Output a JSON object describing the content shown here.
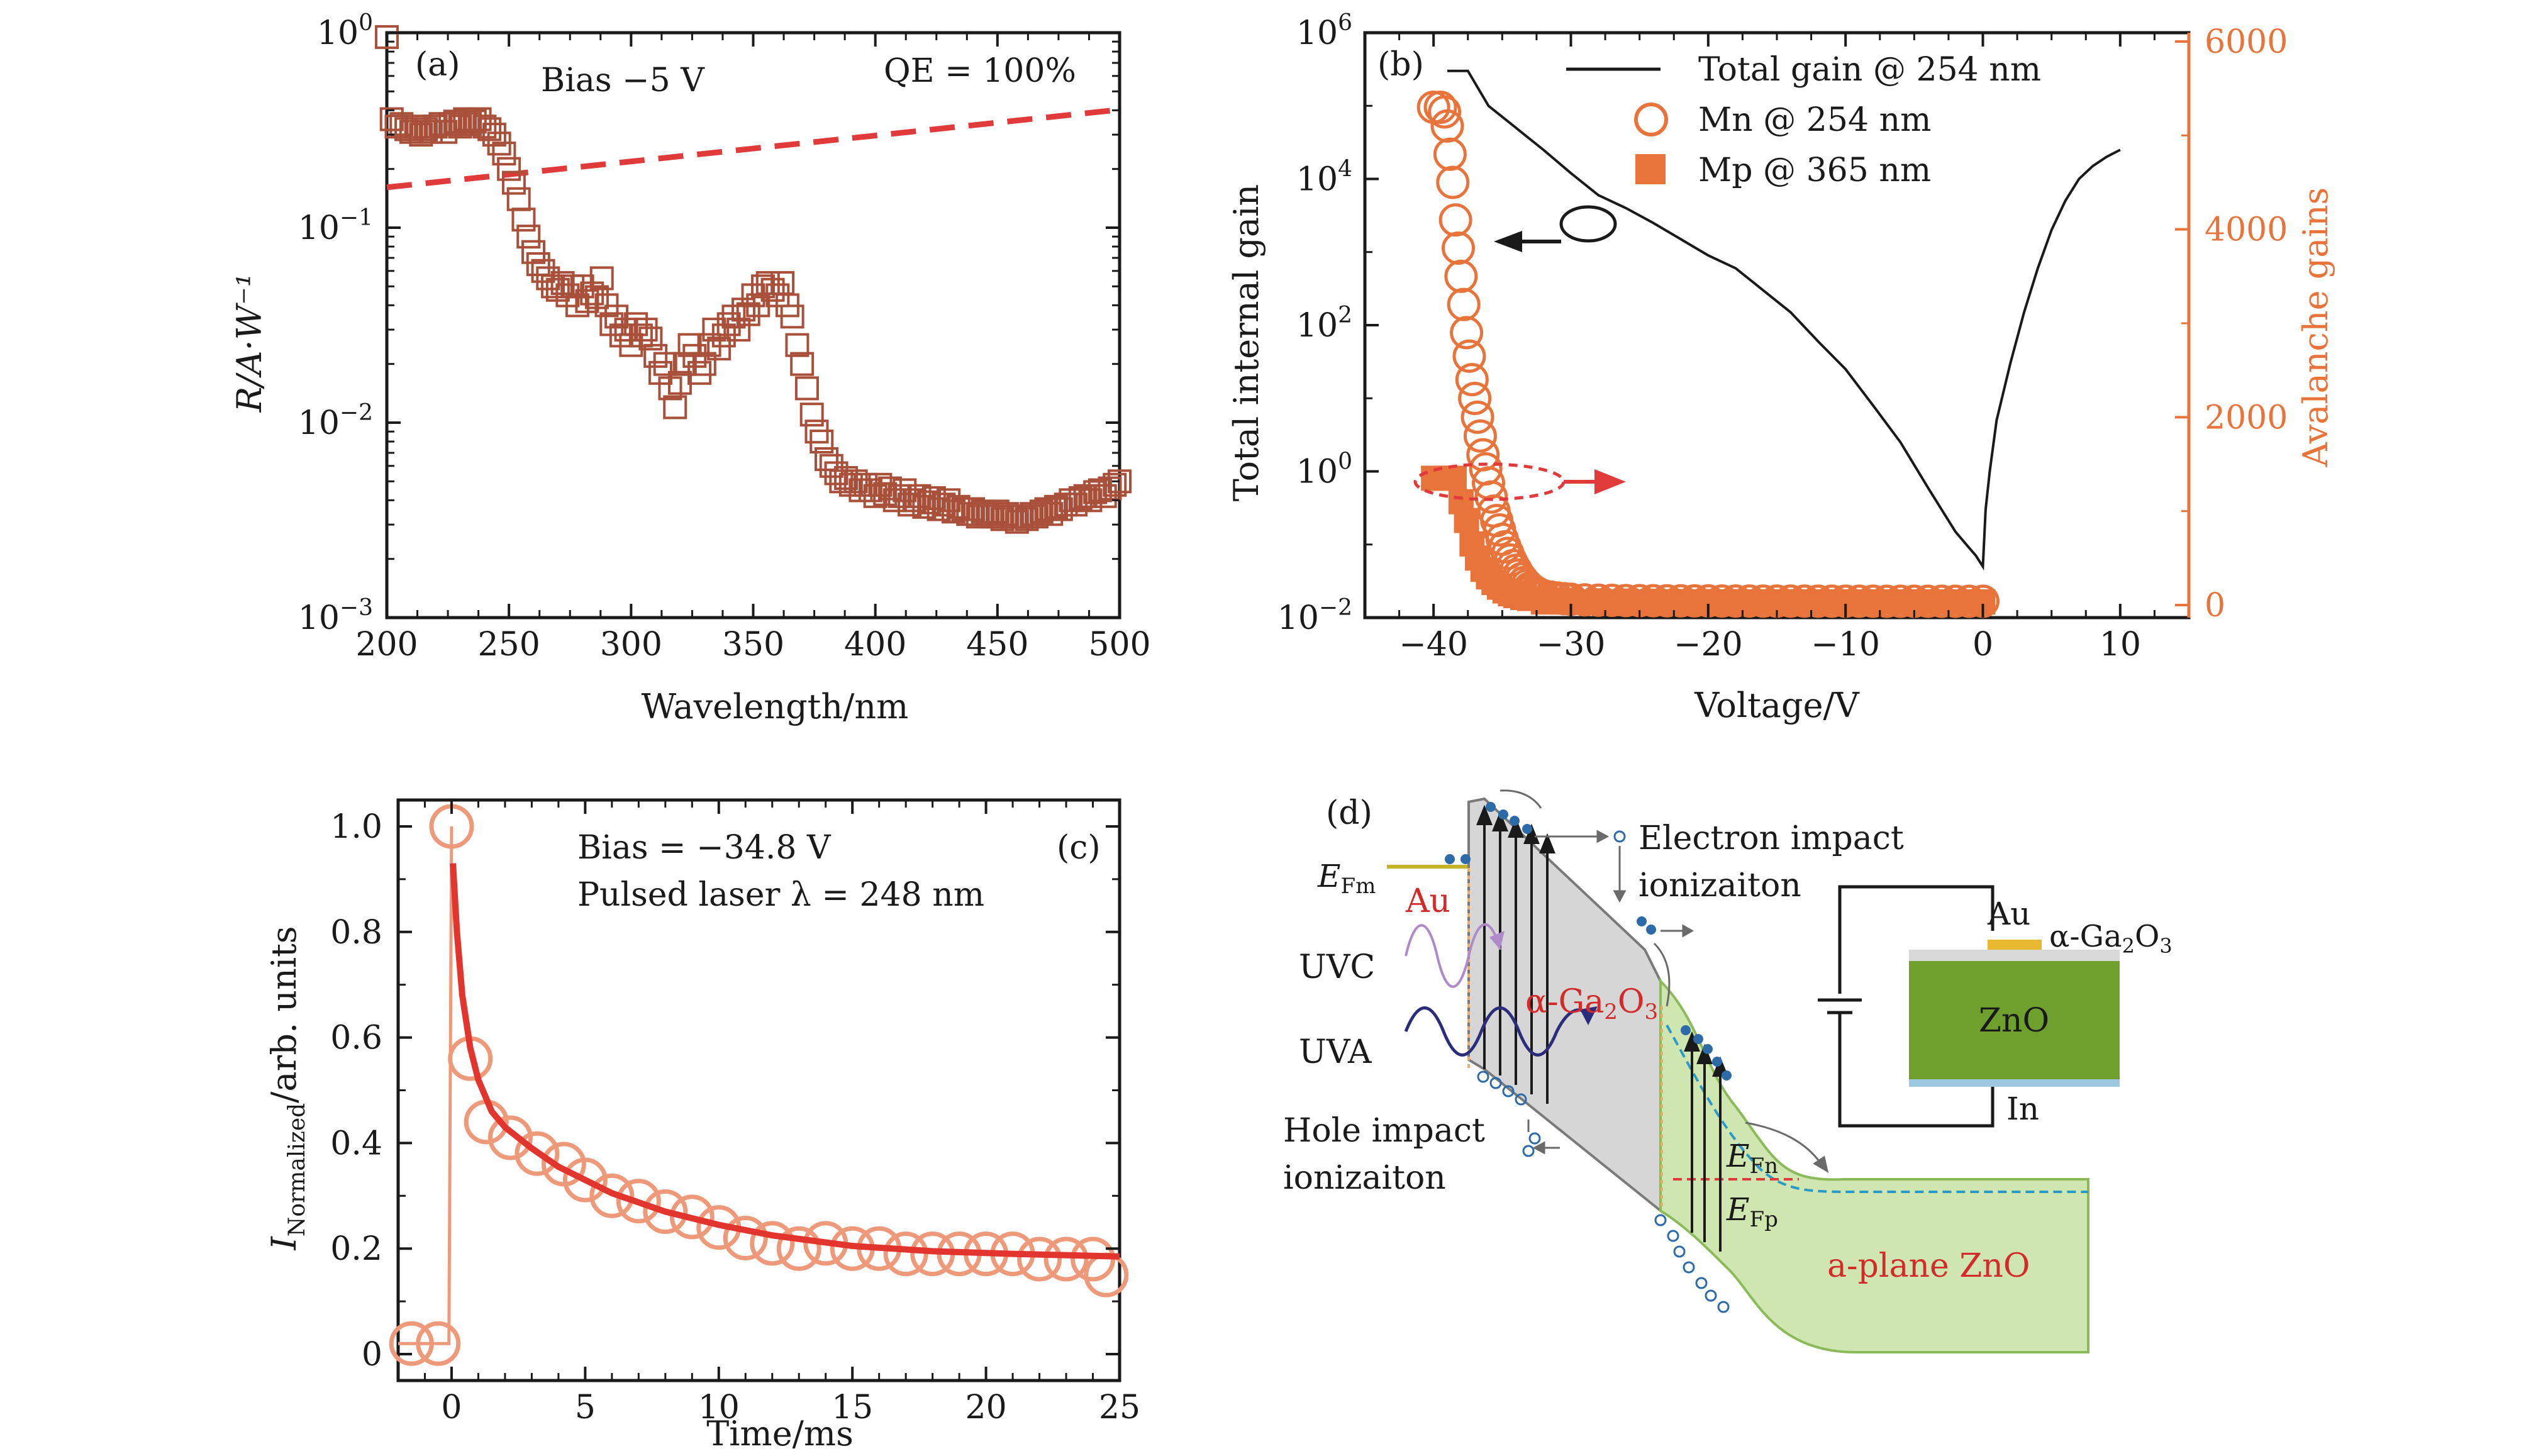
{
  "colors": {
    "axis": "#1a1a1a",
    "square_marker": "#a8503a",
    "qe_line": "#e03a3a",
    "orange": "#e8743b",
    "pulse_circle": "#ee9a7a",
    "fit_line": "#e2352e",
    "green": "#6a9a2c",
    "light_green": "#cfe6b0",
    "band_gray": "#d4d4d4",
    "electron": "#3a78b8",
    "red_label": "#d42a2a"
  },
  "panel_a": {
    "label": "(a)",
    "bias": "Bias −5 V",
    "qe": "QE = 100%",
    "ylabel": "R/A·W⁻¹",
    "xlabel": "Wavelength/nm",
    "xticks": [
      "200",
      "250",
      "300",
      "350",
      "400",
      "450",
      "500"
    ],
    "yticks": [
      {
        "base": "10",
        "exp": "0"
      },
      {
        "base": "10",
        "exp": "−1"
      },
      {
        "base": "10",
        "exp": "−2"
      },
      {
        "base": "10",
        "exp": "−3"
      }
    ]
  },
  "panel_b": {
    "label": "(b)",
    "ylabel_left": "Total internal gain",
    "ylabel_right": "Avalanche gains",
    "xlabel": "Voltage/V",
    "legend_total": "Total gain @ 254 nm",
    "legend_mn": "Mn @ 254 nm",
    "legend_mp": "Mp @ 365 nm",
    "xticks": [
      "−40",
      "−30",
      "−20",
      "−10",
      "0",
      "10"
    ],
    "yticks_left": [
      {
        "base": "10",
        "exp": "6"
      },
      {
        "base": "10",
        "exp": "4"
      },
      {
        "base": "10",
        "exp": "2"
      },
      {
        "base": "10",
        "exp": "0"
      },
      {
        "base": "10",
        "exp": "−2"
      }
    ],
    "yticks_right": [
      "6000",
      "4000",
      "2000",
      "0"
    ]
  },
  "panel_c": {
    "label": "(c)",
    "bias": "Bias = −34.8 V",
    "laser": "Pulsed laser λ = 248 nm",
    "ylabel_main": "I",
    "ylabel_sub": "Normalized",
    "ylabel_rest": "/arb. units",
    "xlabel": "Time/ms",
    "xticks": [
      "0",
      "5",
      "10",
      "15",
      "20",
      "25"
    ],
    "yticks": [
      "1.0",
      "0.8",
      "0.6",
      "0.4",
      "0.2",
      "0"
    ]
  },
  "panel_d": {
    "label": "(d)",
    "efm_main": "E",
    "efm_sub": "Fm",
    "au": "Au",
    "uvc": "UVC",
    "uva": "UVA",
    "ga2o3_main": "α-Ga",
    "ga2o3_sub1": "2",
    "ga2o3_mid": "O",
    "ga2o3_sub2": "3",
    "electron_impact_1": "Electron impact",
    "electron_impact_2": "ionizaiton",
    "hole_impact_1": "Hole impact",
    "hole_impact_2": "ionizaiton",
    "efn_main": "E",
    "efn_sub": "Fn",
    "efp_main": "E",
    "efp_sub": "Fp",
    "aplane": "a-plane ZnO",
    "inset_au": "Au",
    "inset_ga_main": "α-Ga",
    "inset_ga_sub1": "2",
    "inset_ga_mid": "O",
    "inset_ga_sub2": "3",
    "inset_zno": "ZnO",
    "inset_in": "In"
  },
  "chart_data": [
    {
      "panel": "a",
      "type": "scatter",
      "xlabel": "Wavelength/nm",
      "ylabel": "R/A·W⁻¹",
      "xlim": [
        200,
        500
      ],
      "ylim": [
        0.001,
        1
      ],
      "yscale": "log",
      "series": [
        {
          "name": "",
          "marker": "open-square",
          "x": [
            200,
            202,
            204,
            206,
            208,
            210,
            212,
            214,
            216,
            218,
            220,
            222,
            224,
            226,
            228,
            230,
            232,
            234,
            236,
            238,
            240,
            242,
            244,
            246,
            248,
            250,
            252,
            254,
            256,
            258,
            260,
            262,
            264,
            266,
            268,
            270,
            272,
            274,
            276,
            278,
            280,
            282,
            284,
            286,
            288,
            290,
            292,
            294,
            296,
            298,
            300,
            302,
            304,
            306,
            308,
            310,
            312,
            314,
            316,
            318,
            320,
            322,
            324,
            326,
            328,
            330,
            332,
            334,
            336,
            338,
            340,
            342,
            344,
            346,
            348,
            350,
            352,
            354,
            356,
            358,
            360,
            362,
            364,
            366,
            368,
            370,
            372,
            374,
            376,
            378,
            380,
            382,
            384,
            386,
            388,
            390,
            392,
            394,
            396,
            398,
            400,
            402,
            404,
            406,
            408,
            410,
            412,
            414,
            416,
            418,
            420,
            422,
            424,
            426,
            428,
            430,
            432,
            434,
            436,
            438,
            440,
            442,
            444,
            446,
            448,
            450,
            452,
            454,
            456,
            458,
            460,
            462,
            464,
            466,
            468,
            470,
            472,
            474,
            476,
            478,
            480,
            482,
            484,
            486,
            488,
            490,
            492,
            494,
            496,
            498,
            500
          ],
          "y": [
            0.95,
            0.36,
            0.33,
            0.34,
            0.32,
            0.31,
            0.33,
            0.3,
            0.32,
            0.31,
            0.33,
            0.34,
            0.31,
            0.34,
            0.35,
            0.33,
            0.36,
            0.34,
            0.35,
            0.36,
            0.33,
            0.32,
            0.3,
            0.27,
            0.24,
            0.2,
            0.17,
            0.14,
            0.11,
            0.09,
            0.075,
            0.065,
            0.06,
            0.055,
            0.05,
            0.048,
            0.052,
            0.045,
            0.05,
            0.04,
            0.05,
            0.042,
            0.046,
            0.044,
            0.055,
            0.04,
            0.032,
            0.035,
            0.028,
            0.03,
            0.025,
            0.032,
            0.028,
            0.03,
            0.027,
            0.022,
            0.018,
            0.02,
            0.015,
            0.012,
            0.016,
            0.02,
            0.025,
            0.022,
            0.018,
            0.02,
            0.025,
            0.03,
            0.024,
            0.028,
            0.032,
            0.035,
            0.03,
            0.038,
            0.036,
            0.045,
            0.04,
            0.05,
            0.052,
            0.048,
            0.045,
            0.052,
            0.04,
            0.035,
            0.025,
            0.02,
            0.015,
            0.011,
            0.009,
            0.008,
            0.0065,
            0.006,
            0.0055,
            0.005,
            0.0052,
            0.0048,
            0.005,
            0.0045,
            0.0048,
            0.0045,
            0.0042,
            0.0048,
            0.0043,
            0.0046,
            0.004,
            0.0042,
            0.0045,
            0.0038,
            0.004,
            0.0042,
            0.0037,
            0.0039,
            0.0041,
            0.0036,
            0.0038,
            0.004,
            0.0035,
            0.0037,
            0.0036,
            0.0034,
            0.0036,
            0.0033,
            0.0035,
            0.0034,
            0.0033,
            0.0035,
            0.0032,
            0.0034,
            0.0033,
            0.0031,
            0.0033,
            0.0032,
            0.0034,
            0.0033,
            0.0035,
            0.0036,
            0.0034,
            0.0037,
            0.0036,
            0.0038,
            0.004,
            0.0038,
            0.0041,
            0.0042,
            0.004,
            0.0044,
            0.0045,
            0.0042,
            0.0046,
            0.0048,
            0.005
          ]
        },
        {
          "name": "QE = 100%",
          "style": "dashed-line",
          "x": [
            200,
            500
          ],
          "y": [
            0.161,
            0.403
          ]
        }
      ]
    },
    {
      "panel": "b",
      "type": "line+scatter",
      "xlabel": "Voltage/V",
      "ylabel": "Total internal gain",
      "ylabel_right": "Avalanche gains",
      "xlim": [
        -45,
        15
      ],
      "ylim": [
        0.01,
        1000000
      ],
      "yscale": "log",
      "ylim_right": [
        0,
        6000
      ],
      "series": [
        {
          "name": "Total gain @ 254 nm",
          "axis": "left",
          "style": "line",
          "x": [
            -39,
            -37.5,
            -36,
            -34,
            -32,
            -30,
            -28,
            -26,
            -24,
            -22,
            -20,
            -18,
            -16,
            -14,
            -12,
            -10,
            -8,
            -6,
            -4,
            -3,
            -2,
            -1,
            -0.5,
            0,
            0.2,
            0.5,
            1,
            2,
            3,
            4,
            5,
            6,
            7,
            8,
            9,
            10
          ],
          "y": [
            300000,
            300000,
            100000,
            50000,
            25000,
            12000,
            6000,
            4000,
            2500,
            1500,
            900,
            600,
            300,
            150,
            60,
            25,
            8,
            2.5,
            0.6,
            0.3,
            0.15,
            0.09,
            0.07,
            0.05,
            0.3,
            1,
            5,
            30,
            150,
            600,
            2000,
            5000,
            10000,
            15000,
            20000,
            25000
          ]
        },
        {
          "name": "Mn @ 254 nm",
          "axis": "right",
          "marker": "open-circle",
          "x": [
            -40,
            -39.5,
            -39.2,
            -39,
            -38.8,
            -38.6,
            -38.4,
            -38.2,
            -38,
            -37.8,
            -37.6,
            -37.4,
            -37.2,
            -37,
            -36.8,
            -36.6,
            -36.4,
            -36.2,
            -36,
            -35.8,
            -35.6,
            -35.4,
            -35.2,
            -35,
            -34.8,
            -34.6,
            -34.4,
            -34.2,
            -34,
            -33.8,
            -33.6,
            -33.4,
            -33.2,
            -33,
            -32.8,
            -32.6,
            -32.4,
            -32.2,
            -32,
            -31.5,
            -31,
            -30.5,
            -30,
            -29,
            -28,
            -27,
            -26,
            -25,
            -24,
            -23,
            -22,
            -21,
            -20,
            -19,
            -18,
            -17,
            -16,
            -15,
            -14,
            -13,
            -12,
            -11,
            -10,
            -9,
            -8,
            -7,
            -6,
            -5,
            -4,
            -3,
            -2,
            -1,
            0
          ],
          "y": [
            5300,
            5300,
            5250,
            5100,
            4800,
            4500,
            4100,
            3800,
            3500,
            3200,
            2900,
            2650,
            2400,
            2200,
            2000,
            1800,
            1600,
            1450,
            1300,
            1150,
            1000,
            900,
            800,
            700,
            620,
            550,
            480,
            420,
            370,
            320,
            280,
            240,
            210,
            180,
            160,
            140,
            125,
            110,
            100,
            85,
            75,
            68,
            62,
            55,
            52,
            50,
            48,
            47,
            46,
            45,
            45,
            44,
            44,
            43,
            43,
            43,
            42,
            42,
            42,
            42,
            41,
            41,
            41,
            41,
            41,
            40,
            40,
            40,
            40,
            40,
            40,
            40,
            40
          ]
        },
        {
          "name": "Mp @ 365 nm",
          "axis": "right",
          "marker": "filled-square",
          "x": [
            -40,
            -39,
            -38.5,
            -38,
            -37.6,
            -37.2,
            -36.8,
            -36.4,
            -36,
            -35.6,
            -35.2,
            -34.8,
            -34.4,
            -34,
            -33.5,
            -33,
            -32,
            -31,
            -30,
            -28,
            -26,
            -24,
            -22,
            -20,
            -18,
            -16,
            -14,
            -12,
            -10,
            -8,
            -6,
            -4,
            -2,
            0
          ],
          "y": [
            1350,
            1350,
            1350,
            1100,
            900,
            650,
            500,
            380,
            300,
            240,
            190,
            150,
            120,
            100,
            80,
            70,
            60,
            55,
            50,
            45,
            42,
            40,
            38,
            37,
            36,
            35,
            35,
            34,
            34,
            33,
            33,
            33,
            33,
            33
          ]
        }
      ]
    },
    {
      "panel": "c",
      "type": "scatter+line",
      "xlabel": "Time/ms",
      "ylabel": "I_Normalized/arb. units",
      "xlim": [
        -2,
        25
      ],
      "ylim": [
        -0.05,
        1.05
      ],
      "series": [
        {
          "name": "",
          "marker": "open-circle",
          "x": [
            -1.5,
            -0.5,
            0,
            0.7,
            1.3,
            2.2,
            3.2,
            4.2,
            5,
            6,
            7,
            8,
            9,
            10,
            11,
            12,
            13,
            14,
            15,
            16,
            17,
            18,
            19,
            20,
            21,
            22,
            23,
            24,
            24.5
          ],
          "y": [
            0.02,
            0.02,
            1.0,
            0.56,
            0.44,
            0.41,
            0.38,
            0.36,
            0.33,
            0.3,
            0.29,
            0.27,
            0.26,
            0.24,
            0.22,
            0.21,
            0.2,
            0.21,
            0.2,
            0.2,
            0.19,
            0.19,
            0.19,
            0.19,
            0.19,
            0.18,
            0.18,
            0.18,
            0.15
          ]
        },
        {
          "name": "",
          "style": "fit-line",
          "x": [
            0.05,
            0.2,
            0.4,
            0.7,
            1,
            1.5,
            2,
            3,
            4,
            5,
            6,
            8,
            10,
            12,
            15,
            18,
            21,
            25
          ],
          "y": [
            0.93,
            0.8,
            0.68,
            0.58,
            0.52,
            0.46,
            0.43,
            0.39,
            0.355,
            0.33,
            0.305,
            0.27,
            0.245,
            0.225,
            0.205,
            0.195,
            0.19,
            0.185
          ]
        }
      ]
    }
  ]
}
